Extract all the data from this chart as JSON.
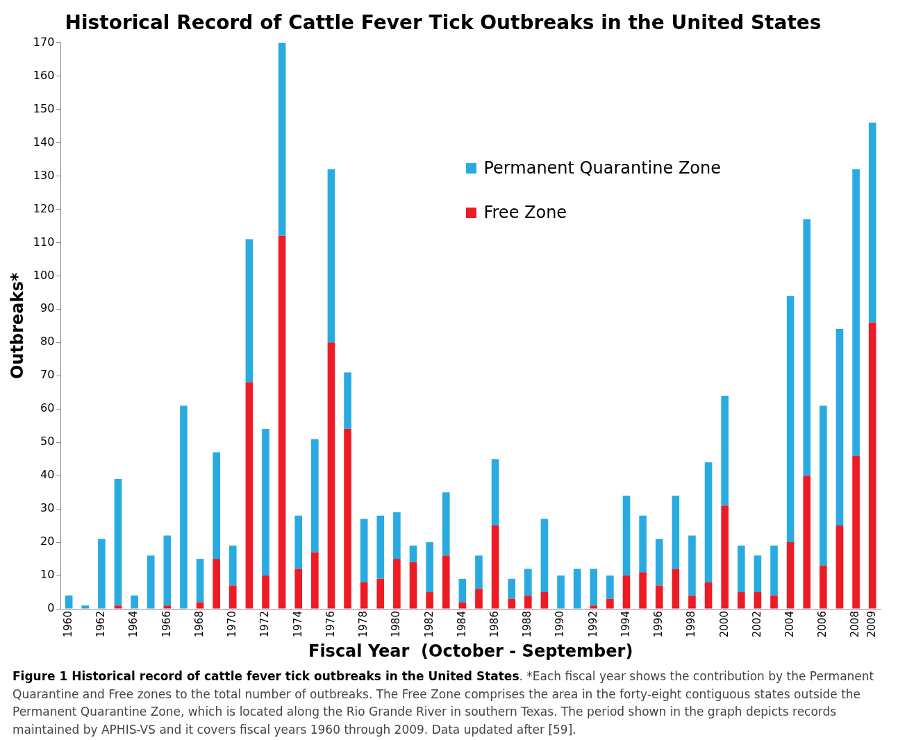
{
  "chart_data": {
    "type": "bar",
    "title": "Historical Record of Cattle Fever Tick Outbreaks in the United States",
    "xlabel": "Fiscal Year  (October - September)",
    "ylabel": "Outbreaks*",
    "categories": [
      "1960",
      null,
      "1962",
      null,
      "1964",
      null,
      "1966",
      null,
      "1968",
      null,
      "1970",
      null,
      "1972",
      null,
      "1974",
      null,
      "1976",
      null,
      "1978",
      null,
      "1980",
      null,
      "1982",
      null,
      "1984",
      null,
      "1986",
      null,
      "1988",
      null,
      "1990",
      null,
      "1992",
      null,
      "1994",
      null,
      "1996",
      null,
      "1998",
      null,
      "2000",
      null,
      "2002",
      null,
      "2004",
      null,
      "2006",
      null,
      "2008",
      "2009"
    ],
    "stacked": true,
    "series": [
      {
        "name": "Free Zone",
        "color": "#ed1c24",
        "values": [
          0,
          0,
          0,
          1,
          0,
          0,
          1,
          0,
          2,
          15,
          7,
          68,
          10,
          112,
          12,
          17,
          80,
          54,
          8,
          9,
          15,
          14,
          5,
          16,
          2,
          6,
          25,
          3,
          4,
          5,
          0,
          0,
          1,
          3,
          10,
          11,
          7,
          12,
          4,
          8,
          31,
          5,
          5,
          4,
          20,
          40,
          13,
          25,
          46,
          86
        ]
      },
      {
        "name": "Permanent Quarantine Zone",
        "color": "#29abe2",
        "values": [
          4,
          1,
          21,
          38,
          4,
          16,
          21,
          61,
          13,
          32,
          12,
          43,
          44,
          58,
          16,
          34,
          52,
          17,
          19,
          19,
          14,
          5,
          15,
          19,
          7,
          10,
          20,
          6,
          8,
          22,
          10,
          12,
          11,
          7,
          24,
          17,
          14,
          22,
          18,
          36,
          33,
          14,
          11,
          15,
          74,
          77,
          48,
          59,
          86,
          60
        ]
      }
    ],
    "ylim": [
      0,
      170
    ],
    "yticks": [
      0,
      10,
      20,
      30,
      40,
      50,
      60,
      70,
      80,
      90,
      100,
      110,
      120,
      130,
      140,
      150,
      160,
      170
    ],
    "grid": false,
    "legend": "top right",
    "annotations": [
      "Figure 1 Historical record of cattle fever tick outbreaks in the United States",
      ". *Each fiscal year shows the contribution by the Permanent Quarantine and Free zones to the total number of outbreaks. The Free Zone comprises the area in the forty-eight contiguous states outside the Permanent Quarantine Zone, which is located along the Rio Grande River in southern Texas. The period shown in the graph depicts records maintained by APHIS-VS and it covers fiscal years 1960 through 2009. Data updated after [59]."
    ]
  }
}
